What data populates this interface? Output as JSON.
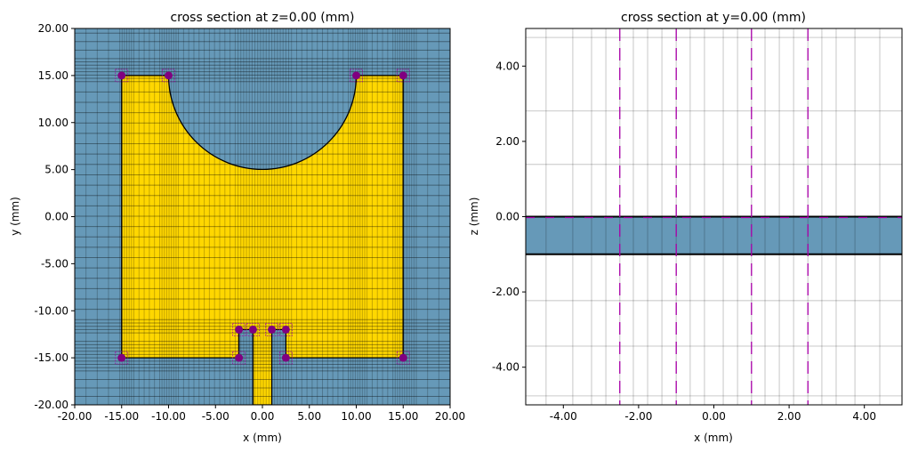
{
  "chart_data": [
    {
      "type": "diagram-cross-section",
      "title": "cross section at z=0.00 (mm)",
      "xlabel": "x (mm)",
      "ylabel": "y (mm)",
      "xlim": [
        -20,
        20
      ],
      "ylim": [
        -20,
        20
      ],
      "xticks": [
        "-20.00",
        "-15.00",
        "-10.00",
        "-5.00",
        "0.00",
        "5.00",
        "10.00",
        "15.00",
        "20.00"
      ],
      "yticks": [
        "-20.00",
        "-15.00",
        "-10.00",
        "-5.00",
        "0.00",
        "5.00",
        "10.00",
        "15.00",
        "20.00"
      ],
      "xtick_values": [
        -20,
        -15,
        -10,
        -5,
        0,
        5,
        10,
        15,
        20
      ],
      "ytick_values": [
        -20,
        -15,
        -10,
        -5,
        0,
        5,
        10,
        15,
        20
      ],
      "background_color": "#6699b8",
      "patch_color": "#ffd700",
      "patch": {
        "x": [
          -15,
          15
        ],
        "y": [
          -15,
          15
        ],
        "circle_cut_center": [
          0,
          15
        ],
        "circle_cut_radius": 10
      },
      "feed_line": {
        "x": [
          -1,
          1
        ],
        "y": [
          -20,
          -12
        ]
      },
      "slots": [
        {
          "x": [
            -2.5,
            -1
          ],
          "y": [
            -15,
            -12
          ]
        },
        {
          "x": [
            1,
            2.5
          ],
          "y": [
            -15,
            -12
          ]
        }
      ],
      "markers": [
        [
          -15,
          15
        ],
        [
          -10,
          15
        ],
        [
          10,
          15
        ],
        [
          15,
          15
        ],
        [
          -15,
          -15
        ],
        [
          15,
          -15
        ],
        [
          -2.5,
          -12
        ],
        [
          -1,
          -12
        ],
        [
          1,
          -12
        ],
        [
          2.5,
          -12
        ],
        [
          -2.5,
          -15
        ],
        [
          2.5,
          -15
        ]
      ],
      "marker_color": "#800080",
      "grid": true
    },
    {
      "type": "diagram-cross-section",
      "title": "cross section at y=0.00 (mm)",
      "xlabel": "x (mm)",
      "ylabel": "z (mm)",
      "xlim": [
        -5,
        5
      ],
      "ylim": [
        -5,
        5
      ],
      "xticks": [
        "-4.00",
        "-2.00",
        "0.00",
        "2.00",
        "4.00"
      ],
      "yticks": [
        "-4.00",
        "-2.00",
        "0.00",
        "2.00",
        "4.00"
      ],
      "xtick_values": [
        -4,
        -2,
        0,
        2,
        4
      ],
      "ytick_values": [
        -4,
        -2,
        0,
        2,
        4
      ],
      "substrate": {
        "z": [
          -1,
          0
        ],
        "color": "#6699b8"
      },
      "grid_x": [
        -4.46,
        -3.75,
        -3.25,
        -2.87,
        -2.5,
        -2.14,
        -1.76,
        -1.38,
        -1.0,
        -0.63,
        -0.25,
        0.25,
        0.63,
        1.0,
        1.36,
        1.74,
        2.12,
        2.5,
        2.87,
        3.25,
        3.75,
        4.41
      ],
      "grid_z": [
        4.76,
        2.81,
        1.39,
        0,
        -1,
        -2.23,
        -3.44,
        -4.76
      ],
      "dashed_x": [
        -2.5,
        -1,
        1,
        2.5
      ],
      "dashed_z": [
        0
      ],
      "dashed_color": "#aa00aa",
      "grid": true
    }
  ]
}
